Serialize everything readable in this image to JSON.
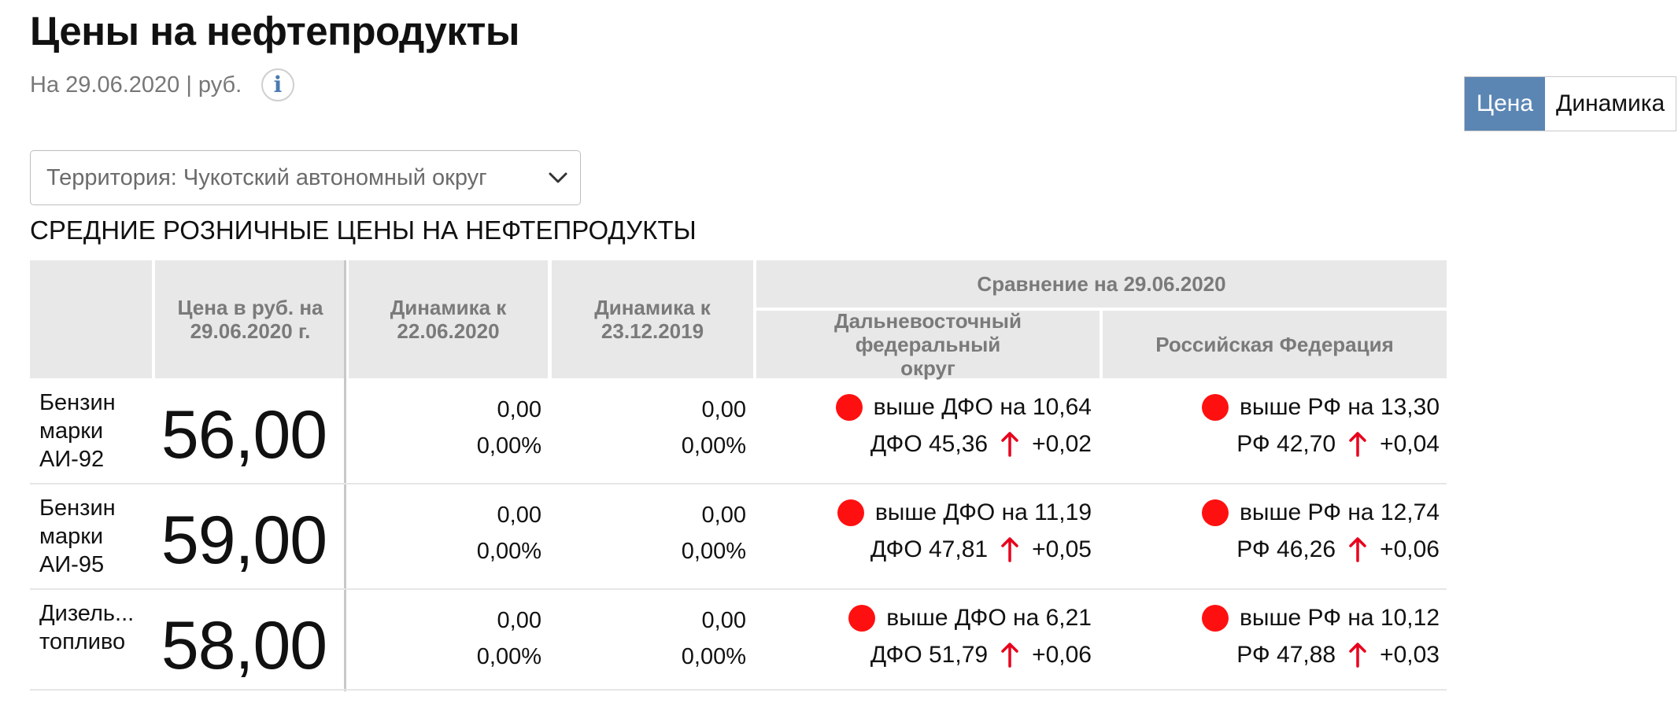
{
  "page": {
    "title": "Цены на нефтепродукты",
    "subtitle": "На 29.06.2020 | руб.",
    "info_icon_glyph": "i"
  },
  "toggle": {
    "price_label": "Цена",
    "dynamics_label": "Динамика",
    "active": "Цена"
  },
  "territory_select": {
    "value": "Территория: Чукотский автономный округ"
  },
  "section_title": "СРЕДНИЕ РОЗНИЧНЫЕ ЦЕНЫ НА НЕФТЕПРОДУКТЫ",
  "table": {
    "headers": {
      "price": "Цена в руб. на 29.06.2020 г.",
      "dyn_week": "Динамика к 22.06.2020",
      "dyn_year": "Динамика к 23.12.2019",
      "comparison": "Сравнение на 29.06.2020",
      "dfo": "Дальневосточный федеральный округ",
      "rf": "Российская Федерация"
    },
    "rows": [
      {
        "product": "Бензин марки АИ-92",
        "price": "56,00",
        "dyn_week_abs": "0,00",
        "dyn_week_pct": "0,00%",
        "dyn_year_abs": "0,00",
        "dyn_year_pct": "0,00%",
        "dfo_compare": "выше ДФО на 10,64",
        "dfo_price": "ДФО 45,36",
        "dfo_change": "+0,02",
        "rf_compare": "выше РФ на 13,30",
        "rf_price": "РФ 42,70",
        "rf_change": "+0,04"
      },
      {
        "product": "Бензин марки АИ-95",
        "price": "59,00",
        "dyn_week_abs": "0,00",
        "dyn_week_pct": "0,00%",
        "dyn_year_abs": "0,00",
        "dyn_year_pct": "0,00%",
        "dfo_compare": "выше ДФО на 11,19",
        "dfo_price": "ДФО 47,81",
        "dfo_change": "+0,05",
        "rf_compare": "выше РФ на 12,74",
        "rf_price": "РФ 46,26",
        "rf_change": "+0,06"
      },
      {
        "product": "Дизель... топливо",
        "price": "58,00",
        "dyn_week_abs": "0,00",
        "dyn_week_pct": "0,00%",
        "dyn_year_abs": "0,00",
        "dyn_year_pct": "0,00%",
        "dfo_compare": "выше ДФО на 6,21",
        "dfo_price": "ДФО 51,79",
        "dfo_change": "+0,06",
        "rf_compare": "выше РФ на 10,12",
        "rf_price": "РФ 47,88",
        "rf_change": "+0,03"
      }
    ]
  },
  "colors": {
    "status_dot": "#ff1010",
    "up_arrow": "#e8001c",
    "accent": "#5b86b4",
    "header_bg": "#e8e8e8"
  }
}
